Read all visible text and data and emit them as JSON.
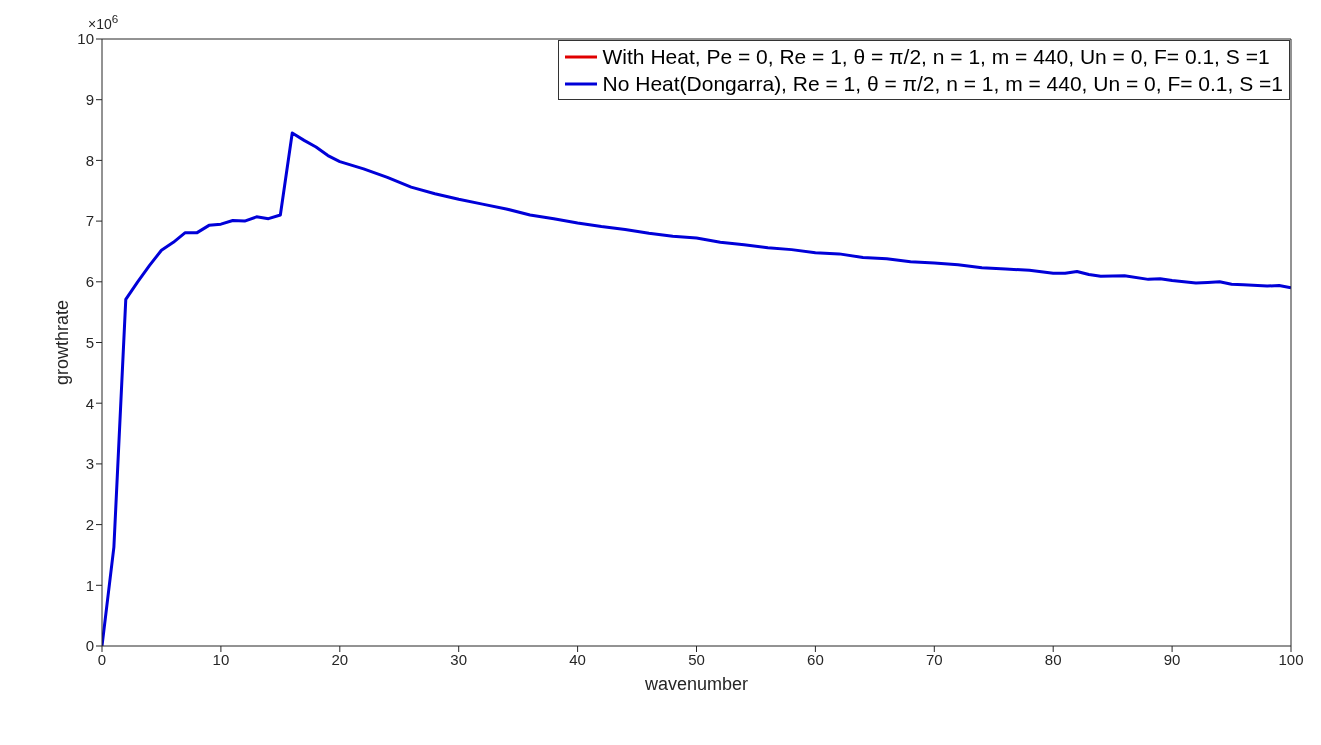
{
  "chart_data": {
    "type": "line",
    "xlabel": "wavenumber",
    "ylabel": "growthrate",
    "annotations": [
      "×10$^{6}$"
    ],
    "x": [
      0,
      1,
      2,
      3,
      4,
      5,
      6,
      7,
      8,
      9,
      10,
      11,
      12,
      13,
      14,
      15,
      16,
      17,
      18,
      19,
      20,
      22,
      24,
      26,
      28,
      30,
      32,
      34,
      36,
      38,
      40,
      42,
      44,
      46,
      48,
      50,
      52,
      54,
      56,
      58,
      60,
      62,
      64,
      66,
      68,
      70,
      72,
      74,
      76,
      78,
      80,
      81,
      82,
      83,
      84,
      86,
      88,
      89,
      90,
      92,
      93,
      94,
      95,
      96,
      98,
      99,
      100
    ],
    "series": [
      {
        "name": "With Heat, Pe = 0, Re = 1, θ = π/2, n = 1, m = 440, Un = 0, F= 0.1, S =1",
        "color": "#e00000",
        "values": [
          null,
          null,
          null,
          null,
          null,
          null,
          null,
          null,
          null,
          null,
          null,
          null,
          null,
          null,
          null,
          null,
          null,
          null,
          null,
          null,
          null,
          null,
          null,
          null,
          null,
          null,
          null,
          null,
          null,
          null,
          null,
          null,
          null,
          null,
          null,
          null,
          null,
          null,
          null,
          null,
          null,
          null,
          null,
          null,
          null,
          null,
          null,
          null,
          null,
          null,
          null,
          null,
          null,
          null,
          null,
          null,
          null,
          null,
          null,
          null,
          null,
          null,
          null,
          null,
          null,
          null,
          null
        ]
      },
      {
        "name": "No Heat(Dongarra), Re = 1, θ = π/2, n = 1, m = 440, Un = 0, F= 0.1, S =1",
        "color": "#0000d8",
        "values": [
          0,
          1.63,
          5.71,
          6.0,
          6.27,
          6.52,
          6.65,
          6.81,
          6.81,
          6.93,
          6.95,
          7.01,
          7.0,
          7.07,
          7.04,
          7.1,
          8.45,
          8.33,
          8.22,
          8.08,
          7.98,
          7.86,
          7.72,
          7.56,
          7.45,
          7.36,
          7.28,
          7.2,
          7.1,
          7.04,
          6.97,
          6.91,
          6.86,
          6.8,
          6.75,
          6.72,
          6.65,
          6.61,
          6.56,
          6.53,
          6.48,
          6.46,
          6.4,
          6.38,
          6.33,
          6.31,
          6.28,
          6.23,
          6.21,
          6.19,
          6.14,
          6.14,
          6.17,
          6.12,
          6.09,
          6.1,
          6.04,
          6.05,
          6.02,
          5.98,
          5.99,
          6.0,
          5.96,
          5.95,
          5.93,
          5.94,
          5.9
        ]
      }
    ],
    "xlim": [
      0,
      100
    ],
    "xticks": [
      0,
      10,
      20,
      30,
      40,
      50,
      60,
      70,
      80,
      90,
      100
    ],
    "ylim": [
      0,
      10
    ],
    "yticks": [
      0,
      1,
      2,
      3,
      4,
      5,
      6,
      7,
      8,
      9,
      10
    ],
    "grid": false,
    "legend": "top right",
    "marker": "none",
    "line_style": "solid"
  }
}
